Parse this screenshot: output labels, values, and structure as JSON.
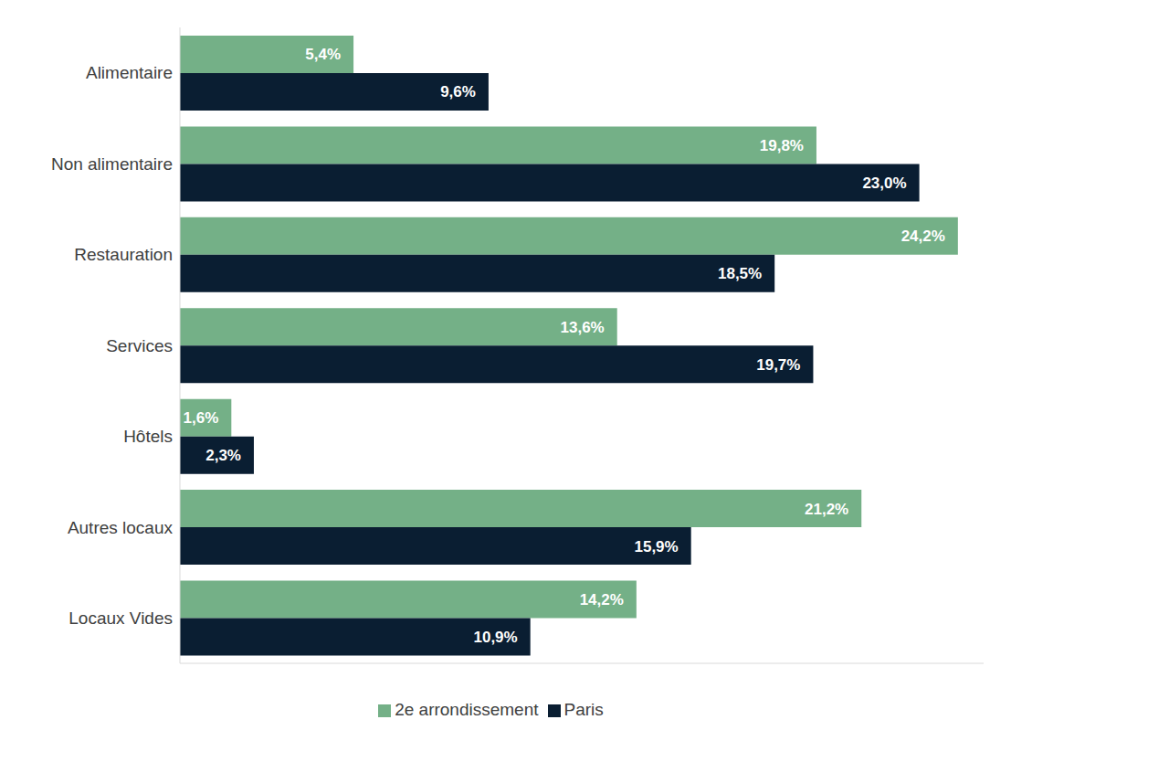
{
  "chart_data": {
    "type": "bar",
    "orientation": "horizontal",
    "categories": [
      "Alimentaire",
      "Non alimentaire",
      "Restauration",
      "Services",
      "Hôtels",
      "Autres locaux",
      "Locaux Vides"
    ],
    "series": [
      {
        "name": "2e arrondissement",
        "color": "#74b087",
        "values": [
          5.4,
          19.8,
          24.2,
          13.6,
          1.6,
          21.2,
          14.2
        ],
        "value_labels": [
          "5,4%",
          "19,8%",
          "24,2%",
          "13,6%",
          "1,6%",
          "21,2%",
          "14,2%"
        ]
      },
      {
        "name": "Paris",
        "color": "#0a1e32",
        "values": [
          9.6,
          23.0,
          18.5,
          19.7,
          2.3,
          15.9,
          10.9
        ],
        "value_labels": [
          "9,6%",
          "23,0%",
          "18,5%",
          "19,7%",
          "2,3%",
          "15,9%",
          "10,9%"
        ]
      }
    ],
    "xlim": [
      0,
      25
    ],
    "data_labels": true,
    "tick_labels": "y",
    "legend": "bottom",
    "grid": false
  }
}
